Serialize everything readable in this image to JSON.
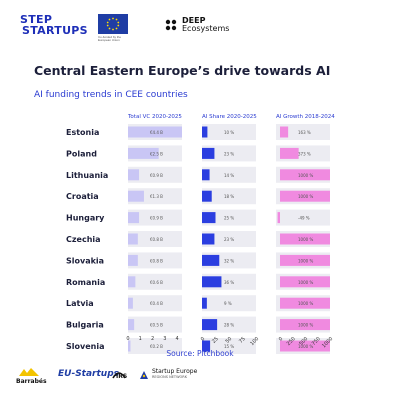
{
  "header": {
    "logo_step_line1": "STEP",
    "logo_step_line2": "STARTUPS",
    "eu_caption": "Co-funded by the European Union",
    "deep_line1": "DEEP",
    "deep_line2": "Ecosystems"
  },
  "title": "Central Eastern Europe’s drive towards AI",
  "subtitle": "AI funding trends in CEE countries",
  "source": "Source: Pitchbook",
  "footer": {
    "barrabes": "Barrabés",
    "eu_startups": "EU-Startups",
    "irs": "IRS",
    "startup_europe_line1": "Startup Europe",
    "startup_europe_line2": "REGIONS NETWORK"
  },
  "colors": {
    "vc_bar": "#c9c6f5",
    "share_bar": "#2b3ee0",
    "growth_bar": "#f08ae0",
    "stripe": "#ececf2",
    "header_text": "#2a3bd1"
  },
  "chart_data": [
    {
      "type": "bar",
      "title": "Total VC 2020-2025",
      "categories": [
        "Estonia",
        "Poland",
        "Lithuania",
        "Croatia",
        "Hungary",
        "Czechia",
        "Slovakia",
        "Romania",
        "Latvia",
        "Bulgaria",
        "Slovenia"
      ],
      "values": [
        4.4,
        2.5,
        0.9,
        1.3,
        0.9,
        0.8,
        0.8,
        0.6,
        0.4,
        0.5,
        0.2
      ],
      "value_labels": [
        "€4.4 B",
        "€2.5 B",
        "€0.9 B",
        "€1.3 B",
        "€0.9 B",
        "€0.8 B",
        "€0.8 B",
        "€0.6 B",
        "€0.4 B",
        "€0.5 B",
        "€0.2 B"
      ],
      "xticks": [
        "0",
        "1",
        "2",
        "3",
        "4"
      ],
      "xlim": [
        0,
        4.4
      ]
    },
    {
      "type": "bar",
      "title": "AI Share 2020-2025",
      "categories": [
        "Estonia",
        "Poland",
        "Lithuania",
        "Croatia",
        "Hungary",
        "Czechia",
        "Slovakia",
        "Romania",
        "Latvia",
        "Bulgaria",
        "Slovenia"
      ],
      "values": [
        10,
        23,
        14,
        18,
        25,
        23,
        32,
        36,
        9,
        28,
        15
      ],
      "value_labels": [
        "10 %",
        "23 %",
        "14 %",
        "18 %",
        "25 %",
        "23 %",
        "32 %",
        "36 %",
        "9 %",
        "28 %",
        "15 %"
      ],
      "xticks": [
        "0",
        "25",
        "50",
        "75",
        "100"
      ],
      "xlim": [
        0,
        100
      ]
    },
    {
      "type": "bar",
      "title": "AI Growth 2018-2024",
      "categories": [
        "Estonia",
        "Poland",
        "Lithuania",
        "Croatia",
        "Hungary",
        "Czechia",
        "Slovakia",
        "Romania",
        "Latvia",
        "Bulgaria",
        "Slovenia"
      ],
      "values": [
        163,
        373,
        1000,
        1000,
        -49,
        1000,
        1000,
        1000,
        1000,
        1000,
        1000
      ],
      "value_labels": [
        "163 %",
        "373 %",
        "1000 %",
        "1000 %",
        "-49 %",
        "1000 %",
        "1000 %",
        "1000 %",
        "1000 %",
        "1000 %",
        "1000 %"
      ],
      "xticks": [
        "0",
        "250",
        "500",
        "750",
        "1000"
      ],
      "xlim": [
        -80,
        1000
      ]
    }
  ]
}
